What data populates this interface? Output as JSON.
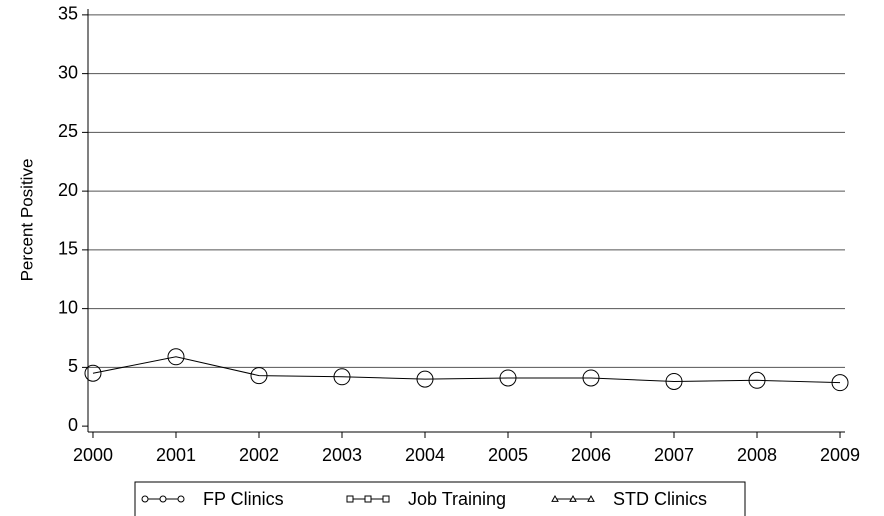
{
  "chart_data": {
    "type": "line",
    "y_label": "Percent Positive",
    "x": [
      2000,
      2001,
      2002,
      2003,
      2004,
      2005,
      2006,
      2007,
      2008,
      2009
    ],
    "series": [
      {
        "name": "FP Clinics",
        "color": "#000000",
        "marker": "circle",
        "values": [
          4.5,
          5.9,
          4.3,
          4.2,
          4.0,
          4.1,
          4.1,
          3.8,
          3.9,
          3.7
        ]
      },
      {
        "name": "Job Training",
        "color": "#000000",
        "marker": "square",
        "values": [
          null,
          null,
          null,
          null,
          null,
          null,
          null,
          null,
          null,
          null
        ]
      },
      {
        "name": "STD Clinics",
        "color": "#000000",
        "marker": "triangle",
        "values": [
          null,
          null,
          null,
          null,
          null,
          null,
          null,
          null,
          null,
          null
        ]
      }
    ],
    "xlim": [
      1999.94,
      2009.06
    ],
    "xticks": [
      2000,
      2001,
      2002,
      2003,
      2004,
      2005,
      2006,
      2007,
      2008,
      2009
    ],
    "ylim": [
      -0.5,
      35.5
    ],
    "yticks": [
      0,
      5,
      10,
      15,
      20,
      25,
      30,
      35
    ],
    "grid": true,
    "legend": "bottom"
  }
}
